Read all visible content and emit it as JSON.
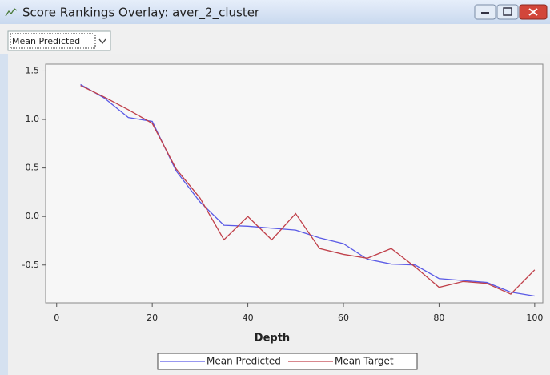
{
  "window": {
    "title": "Score Rankings Overlay: aver_2_cluster",
    "dropdown": "Mean Predicted"
  },
  "chart_data": {
    "type": "line",
    "x_label": "Depth",
    "x": [
      5,
      10,
      15,
      20,
      25,
      30,
      35,
      40,
      45,
      50,
      55,
      60,
      65,
      70,
      75,
      80,
      85,
      90,
      95,
      100
    ],
    "series": [
      {
        "name": "Mean Predicted",
        "color": "#5a5ae6",
        "values": [
          1.36,
          1.22,
          1.02,
          0.98,
          0.47,
          0.15,
          -0.09,
          -0.1,
          -0.12,
          -0.14,
          -0.22,
          -0.28,
          -0.44,
          -0.49,
          -0.5,
          -0.64,
          -0.66,
          -0.68,
          -0.78,
          -0.82
        ]
      },
      {
        "name": "Mean Target",
        "color": "#c0404a",
        "values": [
          1.35,
          1.23,
          1.1,
          0.96,
          0.49,
          0.19,
          -0.24,
          0.0,
          -0.24,
          0.03,
          -0.33,
          -0.39,
          -0.43,
          -0.33,
          -0.52,
          -0.73,
          -0.67,
          -0.69,
          -0.8,
          -0.55
        ]
      }
    ],
    "xlim": [
      -2.3,
      101.7
    ],
    "ylim": [
      -0.89,
      1.57
    ],
    "xticks": [
      0,
      20,
      40,
      60,
      80,
      100
    ],
    "yticks": [
      {
        "value": 1.5,
        "label": "1.5"
      },
      {
        "value": 1.0,
        "label": "1.0"
      },
      {
        "value": 0.5,
        "label": "0.5"
      },
      {
        "value": 0,
        "label": "0.0"
      },
      {
        "value": -0.5,
        "label": "-0.5"
      }
    ],
    "legend": "bottom"
  }
}
